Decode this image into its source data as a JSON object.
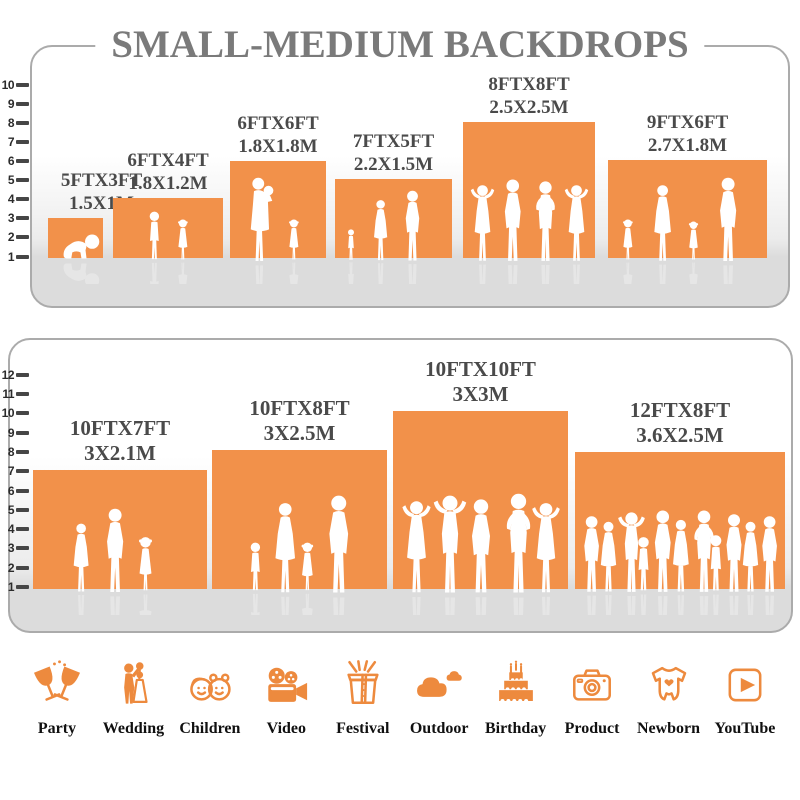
{
  "title": "SMALL-MEDIUM BACKDROPS",
  "colors": {
    "bar_orange": "#F2914A",
    "icon_orange": "#ED8A3E",
    "title_gray": "#7A7A7A",
    "label_gray": "#4A4A4A",
    "floor_gray": "#DCDCDC",
    "tick_color": "#464646",
    "panel_border": "#ABABAB"
  },
  "panels": [
    {
      "ruler_max": 10,
      "bars": [
        {
          "size_ft": "5FTX3FT",
          "size_m": "1.5X1M",
          "people": [
            [
              "baby",
              8,
              28
            ]
          ]
        },
        {
          "size_ft": "6FTX4FT",
          "size_m": "1.8X1.2M",
          "people": [
            [
              "boy",
              32,
              50
            ],
            [
              "girl",
              62,
              42
            ]
          ]
        },
        {
          "size_ft": "6FTX6FT",
          "size_m": "1.8X1.8M",
          "people": [
            [
              "womanbaby",
              10,
              86
            ],
            [
              "girl",
              56,
              42
            ]
          ]
        },
        {
          "size_ft": "7FTX5FT",
          "size_m": "2.2X1.5M",
          "people": [
            [
              "boy",
              10,
              32
            ],
            [
              "woman",
              34,
              62
            ],
            [
              "man",
              64,
              72
            ]
          ]
        },
        {
          "size_ft": "8FTX8FT",
          "size_m": "2.5X2.5M",
          "people": [
            [
              "womanup",
              0,
              78
            ],
            [
              "man",
              34,
              84
            ],
            [
              "manak",
              62,
              82
            ],
            [
              "womanup",
              94,
              78
            ]
          ]
        },
        {
          "size_ft": "9FTX6FT",
          "size_m": "2.7X1.8M",
          "people": [
            [
              "girl",
              12,
              42
            ],
            [
              "woman",
              40,
              78
            ],
            [
              "girl",
              78,
              40
            ],
            [
              "man",
              104,
              86
            ]
          ]
        }
      ]
    },
    {
      "ruler_max": 12,
      "bars": [
        {
          "size_ft": "10FTX7FT",
          "size_m": "3X2.1M",
          "people": [
            [
              "woman",
              35,
              70
            ],
            [
              "man",
              66,
              86
            ],
            [
              "girl",
              102,
              56
            ]
          ]
        },
        {
          "size_ft": "10FTX8FT",
          "size_m": "3X2.5M",
          "people": [
            [
              "boy",
              34,
              50
            ],
            [
              "woman",
              56,
              92
            ],
            [
              "girl",
              86,
              50
            ],
            [
              "man",
              108,
              100
            ]
          ]
        },
        {
          "size_ft": "10FTX10FT",
          "size_m": "3X3M",
          "people": [
            [
              "womanup",
              0,
              94
            ],
            [
              "manup",
              32,
              100
            ],
            [
              "man",
              70,
              96
            ],
            [
              "manak",
              100,
              102
            ],
            [
              "womanup",
              130,
              92
            ]
          ]
        },
        {
          "size_ft": "12FTX8FT",
          "size_m": "3.6X2.5M",
          "people": [
            [
              "man",
              2,
              78
            ],
            [
              "woman",
              20,
              72
            ],
            [
              "manup",
              36,
              82
            ],
            [
              "boy",
              58,
              56
            ],
            [
              "man",
              72,
              84
            ],
            [
              "woman",
              92,
              74
            ],
            [
              "manak",
              108,
              84
            ],
            [
              "boy",
              130,
              58
            ],
            [
              "man",
              144,
              80
            ],
            [
              "woman",
              162,
              72
            ],
            [
              "man",
              180,
              78
            ]
          ]
        }
      ]
    }
  ],
  "categories": [
    {
      "label": "Party",
      "icon": "party-icon"
    },
    {
      "label": "Wedding",
      "icon": "wedding-icon"
    },
    {
      "label": "Children",
      "icon": "children-icon"
    },
    {
      "label": "Video",
      "icon": "video-icon"
    },
    {
      "label": "Festival",
      "icon": "festival-icon"
    },
    {
      "label": "Outdoor",
      "icon": "outdoor-icon"
    },
    {
      "label": "Birthday",
      "icon": "birthday-icon"
    },
    {
      "label": "Product",
      "icon": "product-icon"
    },
    {
      "label": "Newborn",
      "icon": "newborn-icon"
    },
    {
      "label": "YouTube",
      "icon": "youtube-icon"
    }
  ]
}
